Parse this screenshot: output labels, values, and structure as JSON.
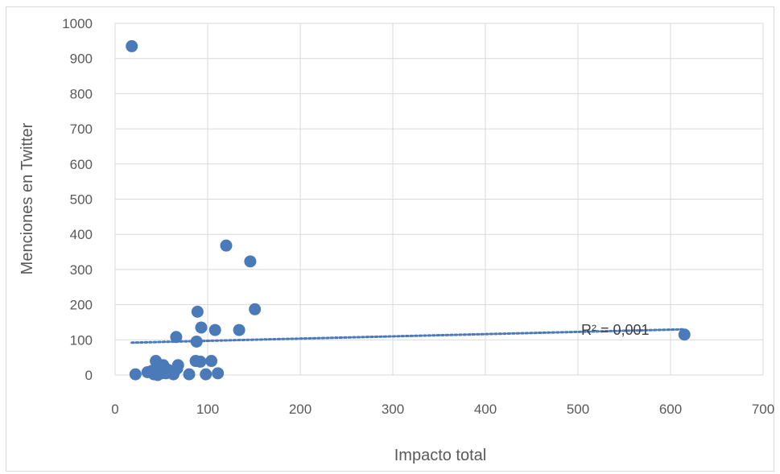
{
  "chart_data": {
    "type": "scatter",
    "xlabel": "Impacto total",
    "ylabel": "Menciones en Twitter",
    "xlim": [
      0,
      700
    ],
    "ylim": [
      0,
      1000
    ],
    "xticks": [
      "0",
      "100",
      "200",
      "300",
      "400",
      "500",
      "600",
      "700"
    ],
    "yticks": [
      "0",
      "100",
      "200",
      "300",
      "400",
      "500",
      "600",
      "700",
      "800",
      "900",
      "1000"
    ],
    "grid": true,
    "marker_color": "#4a7ab8",
    "trendline": {
      "type": "linear",
      "style": "dotted",
      "x_range": [
        18,
        615
      ],
      "y_start": 92,
      "y_end": 130,
      "label": "R² = 0,001"
    },
    "points": [
      {
        "x": 18,
        "y": 935
      },
      {
        "x": 22,
        "y": 2
      },
      {
        "x": 35,
        "y": 8
      },
      {
        "x": 40,
        "y": 12
      },
      {
        "x": 42,
        "y": 2
      },
      {
        "x": 44,
        "y": 40
      },
      {
        "x": 46,
        "y": 0
      },
      {
        "x": 48,
        "y": 22
      },
      {
        "x": 50,
        "y": 5
      },
      {
        "x": 52,
        "y": 28
      },
      {
        "x": 55,
        "y": 5
      },
      {
        "x": 57,
        "y": 15
      },
      {
        "x": 63,
        "y": 2
      },
      {
        "x": 66,
        "y": 108
      },
      {
        "x": 67,
        "y": 18
      },
      {
        "x": 68,
        "y": 28
      },
      {
        "x": 80,
        "y": 2
      },
      {
        "x": 87,
        "y": 40
      },
      {
        "x": 88,
        "y": 95
      },
      {
        "x": 89,
        "y": 180
      },
      {
        "x": 92,
        "y": 38
      },
      {
        "x": 93,
        "y": 135
      },
      {
        "x": 98,
        "y": 2
      },
      {
        "x": 104,
        "y": 40
      },
      {
        "x": 108,
        "y": 128
      },
      {
        "x": 111,
        "y": 5
      },
      {
        "x": 120,
        "y": 368
      },
      {
        "x": 134,
        "y": 128
      },
      {
        "x": 146,
        "y": 323
      },
      {
        "x": 151,
        "y": 187
      },
      {
        "x": 615,
        "y": 115
      }
    ]
  }
}
